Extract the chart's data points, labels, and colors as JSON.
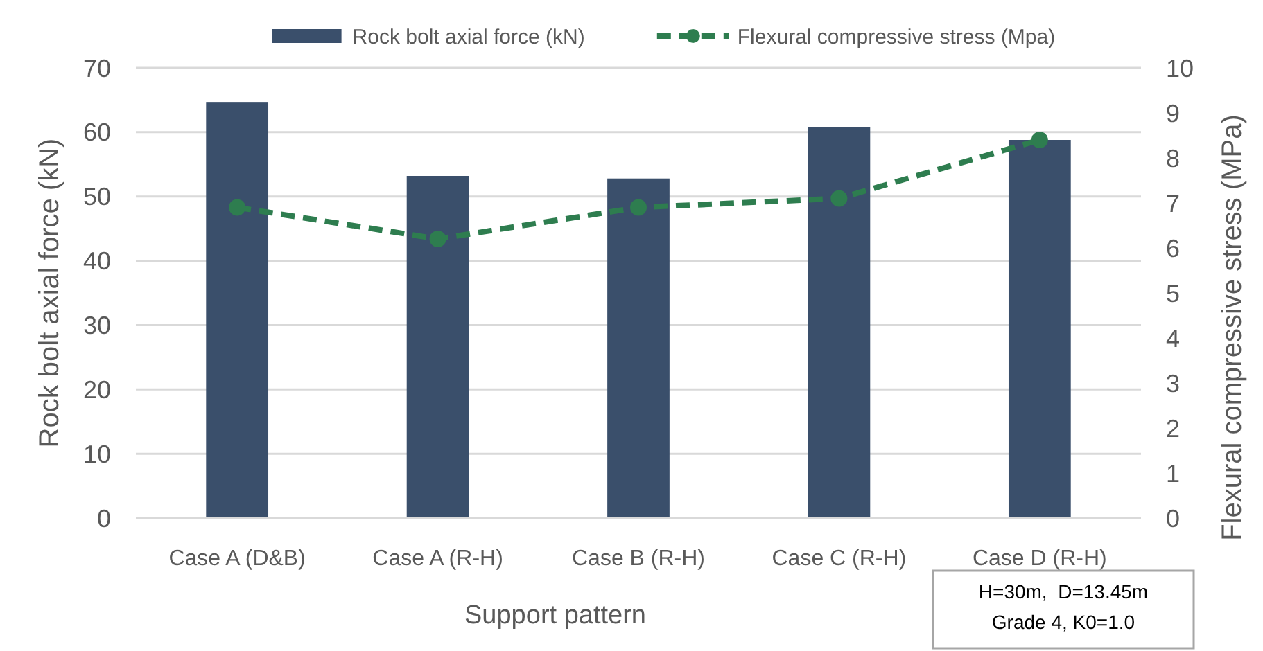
{
  "chart_data": {
    "type": "bar",
    "xlabel": "Support pattern",
    "ylabel": "Rock bolt axial force (kN)",
    "y2label": "Flexural compressive stress (MPa)",
    "categories": [
      "Case A (D&B)",
      "Case A (R-H)",
      "Case B (R-H)",
      "Case C (R-H)",
      "Case D (R-H)"
    ],
    "series": [
      {
        "name": "Rock bolt axial force (kN)",
        "color": "#3a4f6b",
        "values": [
          64.6,
          53.2,
          52.8,
          60.8,
          58.8
        ]
      },
      {
        "name": "Flexural compressive stress (Mpa)",
        "type": "line",
        "axis": "y2",
        "color": "#2e7d4f",
        "values": [
          6.9,
          6.2,
          6.9,
          7.1,
          8.4
        ],
        "marker": "circle",
        "line_style": "dashed"
      }
    ],
    "ylim": [
      0,
      70
    ],
    "yticks": [
      0,
      10,
      20,
      30,
      40,
      50,
      60,
      70
    ],
    "y2lim": [
      0,
      10
    ],
    "y2ticks": [
      0,
      1,
      2,
      3,
      4,
      5,
      6,
      7,
      8,
      9,
      10
    ],
    "grid": "y",
    "legend": "top",
    "annotations": [
      "H=30m,  D=13.45m\nGrade 4, K0=1.0"
    ]
  }
}
